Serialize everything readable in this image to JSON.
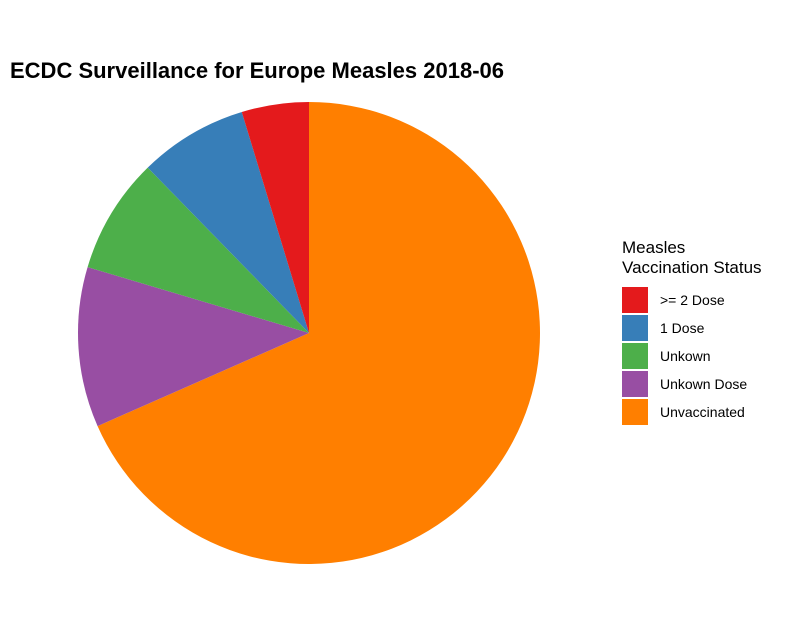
{
  "chart_data": {
    "type": "pie",
    "title": "ECDC Surveillance for Europe Measles 2018-06",
    "legend_title": [
      "Measles",
      "Vaccination Status"
    ],
    "legend_position": "right",
    "series": [
      {
        "name": ">= 2 Dose",
        "value": 4.7,
        "color": "#E41A1C"
      },
      {
        "name": "1 Dose",
        "value": 7.6,
        "color": "#377EB8"
      },
      {
        "name": "Unkown",
        "value": 8.1,
        "color": "#4DAF4A"
      },
      {
        "name": "Unkown Dose",
        "value": 11.2,
        "color": "#984EA3"
      },
      {
        "name": "Unvaccinated",
        "value": 68.4,
        "color": "#FF7F00"
      }
    ]
  }
}
